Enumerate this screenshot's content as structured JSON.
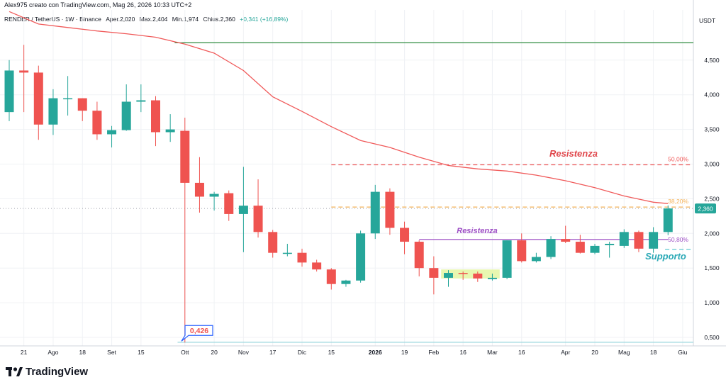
{
  "header": {
    "line": "Alex975 creato con TradingView.com, Mag 26, 2026 10:33 UTC+2"
  },
  "symbol": {
    "name": "RENDER / TetherUS · 1W · Binance",
    "o_label": "O",
    "o_value": "Aper.2,020",
    "h_label": "H",
    "h_value": "Max.2,404",
    "l_label": "L",
    "l_value": "Min.1,974",
    "c_label": "C",
    "c_value": "Chius.2,360",
    "change": "+0,341 (+16,89%)"
  },
  "brand": {
    "name": "TradingView",
    "logo_icon": "tradingview-logo-icon"
  },
  "chart_data": {
    "type": "candlestick",
    "currency": "USDT",
    "y_range": [
      0.35,
      5.1
    ],
    "y_ticks": [
      {
        "v": 0.5,
        "label": "0,500"
      },
      {
        "v": 1.0,
        "label": "1,000"
      },
      {
        "v": 1.5,
        "label": "1,500"
      },
      {
        "v": 2.0,
        "label": "2,000"
      },
      {
        "v": 2.5,
        "label": "2,500"
      },
      {
        "v": 3.0,
        "label": "3,000"
      },
      {
        "v": 3.5,
        "label": "3,500"
      },
      {
        "v": 4.0,
        "label": "4,000"
      },
      {
        "v": 4.5,
        "label": "4,500"
      }
    ],
    "x_ticks": [
      {
        "i": 1,
        "label": "21",
        "bold": false
      },
      {
        "i": 3,
        "label": "Ago",
        "bold": false
      },
      {
        "i": 5,
        "label": "18",
        "bold": false
      },
      {
        "i": 7,
        "label": "Set",
        "bold": false
      },
      {
        "i": 9,
        "label": "15",
        "bold": false
      },
      {
        "i": 12,
        "label": "Ott",
        "bold": false
      },
      {
        "i": 14,
        "label": "20",
        "bold": false
      },
      {
        "i": 16,
        "label": "Nov",
        "bold": false
      },
      {
        "i": 18,
        "label": "17",
        "bold": false
      },
      {
        "i": 20,
        "label": "Dic",
        "bold": false
      },
      {
        "i": 22,
        "label": "15",
        "bold": false
      },
      {
        "i": 25,
        "label": "2026",
        "bold": true
      },
      {
        "i": 27,
        "label": "19",
        "bold": false
      },
      {
        "i": 29,
        "label": "Feb",
        "bold": false
      },
      {
        "i": 31,
        "label": "16",
        "bold": false
      },
      {
        "i": 33,
        "label": "Mar",
        "bold": false
      },
      {
        "i": 35,
        "label": "16",
        "bold": false
      },
      {
        "i": 38,
        "label": "Apr",
        "bold": false
      },
      {
        "i": 40,
        "label": "20",
        "bold": false
      },
      {
        "i": 42,
        "label": "Mag",
        "bold": false
      },
      {
        "i": 44,
        "label": "18",
        "bold": false
      },
      {
        "i": 46,
        "label": "Giu",
        "bold": false
      }
    ],
    "candles": [
      {
        "o": 3.75,
        "h": 4.5,
        "l": 3.62,
        "c": 4.35
      },
      {
        "o": 4.35,
        "h": 4.72,
        "l": 3.75,
        "c": 4.32
      },
      {
        "o": 4.32,
        "h": 4.42,
        "l": 3.35,
        "c": 3.57
      },
      {
        "o": 3.57,
        "h": 4.08,
        "l": 3.42,
        "c": 3.95
      },
      {
        "o": 3.95,
        "h": 4.27,
        "l": 3.7,
        "c": 3.95
      },
      {
        "o": 3.95,
        "h": 3.95,
        "l": 3.62,
        "c": 3.77
      },
      {
        "o": 3.77,
        "h": 3.9,
        "l": 3.35,
        "c": 3.43
      },
      {
        "o": 3.43,
        "h": 3.55,
        "l": 3.24,
        "c": 3.49
      },
      {
        "o": 3.49,
        "h": 4.15,
        "l": 3.48,
        "c": 3.9
      },
      {
        "o": 3.9,
        "h": 4.15,
        "l": 3.75,
        "c": 3.92
      },
      {
        "o": 3.92,
        "h": 3.98,
        "l": 3.26,
        "c": 3.46
      },
      {
        "o": 3.46,
        "h": 3.72,
        "l": 3.32,
        "c": 3.5
      },
      {
        "o": 3.48,
        "h": 3.67,
        "l": 0.426,
        "c": 2.73
      },
      {
        "o": 2.73,
        "h": 3.1,
        "l": 2.3,
        "c": 2.53
      },
      {
        "o": 2.53,
        "h": 2.6,
        "l": 2.33,
        "c": 2.57
      },
      {
        "o": 2.58,
        "h": 2.62,
        "l": 2.18,
        "c": 2.28
      },
      {
        "o": 2.28,
        "h": 2.96,
        "l": 1.73,
        "c": 2.4
      },
      {
        "o": 2.4,
        "h": 2.78,
        "l": 1.94,
        "c": 2.02
      },
      {
        "o": 2.02,
        "h": 2.05,
        "l": 1.65,
        "c": 1.72
      },
      {
        "o": 1.72,
        "h": 1.85,
        "l": 1.67,
        "c": 1.72
      },
      {
        "o": 1.72,
        "h": 1.78,
        "l": 1.52,
        "c": 1.58
      },
      {
        "o": 1.58,
        "h": 1.62,
        "l": 1.45,
        "c": 1.48
      },
      {
        "o": 1.48,
        "h": 1.5,
        "l": 1.19,
        "c": 1.27
      },
      {
        "o": 1.27,
        "h": 1.33,
        "l": 1.23,
        "c": 1.32
      },
      {
        "o": 1.32,
        "h": 2.04,
        "l": 1.29,
        "c": 2.0
      },
      {
        "o": 2.0,
        "h": 2.7,
        "l": 1.92,
        "c": 2.6
      },
      {
        "o": 2.6,
        "h": 2.65,
        "l": 1.98,
        "c": 2.08
      },
      {
        "o": 2.08,
        "h": 2.17,
        "l": 1.7,
        "c": 1.88
      },
      {
        "o": 1.88,
        "h": 1.9,
        "l": 1.38,
        "c": 1.5
      },
      {
        "o": 1.5,
        "h": 1.67,
        "l": 1.12,
        "c": 1.36
      },
      {
        "o": 1.36,
        "h": 1.47,
        "l": 1.23,
        "c": 1.43
      },
      {
        "o": 1.43,
        "h": 1.45,
        "l": 1.33,
        "c": 1.42
      },
      {
        "o": 1.42,
        "h": 1.45,
        "l": 1.3,
        "c": 1.35
      },
      {
        "o": 1.34,
        "h": 1.42,
        "l": 1.32,
        "c": 1.36
      },
      {
        "o": 1.36,
        "h": 1.9,
        "l": 1.34,
        "c": 1.9
      },
      {
        "o": 1.9,
        "h": 2.0,
        "l": 1.58,
        "c": 1.6
      },
      {
        "o": 1.6,
        "h": 1.72,
        "l": 1.58,
        "c": 1.66
      },
      {
        "o": 1.66,
        "h": 1.96,
        "l": 1.63,
        "c": 1.92
      },
      {
        "o": 1.92,
        "h": 2.11,
        "l": 1.86,
        "c": 1.88
      },
      {
        "o": 1.88,
        "h": 1.98,
        "l": 1.71,
        "c": 1.72
      },
      {
        "o": 1.72,
        "h": 1.85,
        "l": 1.7,
        "c": 1.82
      },
      {
        "o": 1.83,
        "h": 1.88,
        "l": 1.65,
        "c": 1.85
      },
      {
        "o": 1.82,
        "h": 2.06,
        "l": 1.79,
        "c": 2.02
      },
      {
        "o": 2.02,
        "h": 2.04,
        "l": 1.73,
        "c": 1.78
      },
      {
        "o": 1.78,
        "h": 2.09,
        "l": 1.72,
        "c": 2.02
      },
      {
        "o": 2.02,
        "h": 2.404,
        "l": 1.974,
        "c": 2.36
      }
    ],
    "ma_series": {
      "color": "#f05a5a",
      "points": [
        [
          0,
          5.2
        ],
        [
          2,
          5.02
        ],
        [
          4,
          4.97
        ],
        [
          6,
          4.92
        ],
        [
          8,
          4.88
        ],
        [
          10,
          4.83
        ],
        [
          12,
          4.73
        ],
        [
          14,
          4.6
        ],
        [
          16,
          4.35
        ],
        [
          18,
          3.97
        ],
        [
          20,
          3.76
        ],
        [
          22,
          3.54
        ],
        [
          24,
          3.34
        ],
        [
          26,
          3.24
        ],
        [
          28,
          3.1
        ],
        [
          30,
          2.98
        ],
        [
          32,
          2.93
        ],
        [
          34,
          2.9
        ],
        [
          36,
          2.84
        ],
        [
          38,
          2.76
        ],
        [
          40,
          2.66
        ],
        [
          42,
          2.54
        ],
        [
          44,
          2.45
        ],
        [
          45,
          2.43
        ]
      ]
    },
    "levels": [
      {
        "name": "green-line",
        "v": 4.75,
        "from": 11.3,
        "to": 46.8,
        "color": "#2e8b3e",
        "style": "solid"
      },
      {
        "name": "fib-50",
        "v": 2.99,
        "from": 22,
        "to": 46.5,
        "color": "#f05a5a",
        "style": "dashed",
        "label": "50,00%"
      },
      {
        "name": "fib-38",
        "v": 2.38,
        "from": 22,
        "to": 46.5,
        "color": "#f4b35a",
        "style": "dashed",
        "label": "38,20%"
      },
      {
        "name": "fib-23",
        "v": 1.912,
        "from": 28,
        "to": 45,
        "color": "#9c4dc4",
        "style": "solid",
        "label": "50,80%"
      },
      {
        "name": "support",
        "v": 1.77,
        "from": 44.8,
        "to": 47,
        "color": "#4fc2cc",
        "style": "dashed"
      },
      {
        "name": "low-line",
        "v": 0.43,
        "from": 11.5,
        "to": 47,
        "color": "#9ad7de",
        "style": "solid"
      }
    ],
    "dotted_price_line": {
      "v": 2.36,
      "color": "#a0a3ad"
    },
    "annotations": {
      "resistenza_top": "Resistenza",
      "resistenza_mid": "Resistenza",
      "supporto": "Supporto",
      "low_callout": "0,426"
    },
    "last_price_label": "2,360",
    "last_price": 2.36,
    "highlight_zone": {
      "x0": 29.5,
      "x1": 33.5,
      "y0": 1.35,
      "y1": 1.48,
      "color": "#e8f7b0"
    },
    "colors": {
      "up": "#26a69a",
      "down": "#ef5350"
    }
  }
}
